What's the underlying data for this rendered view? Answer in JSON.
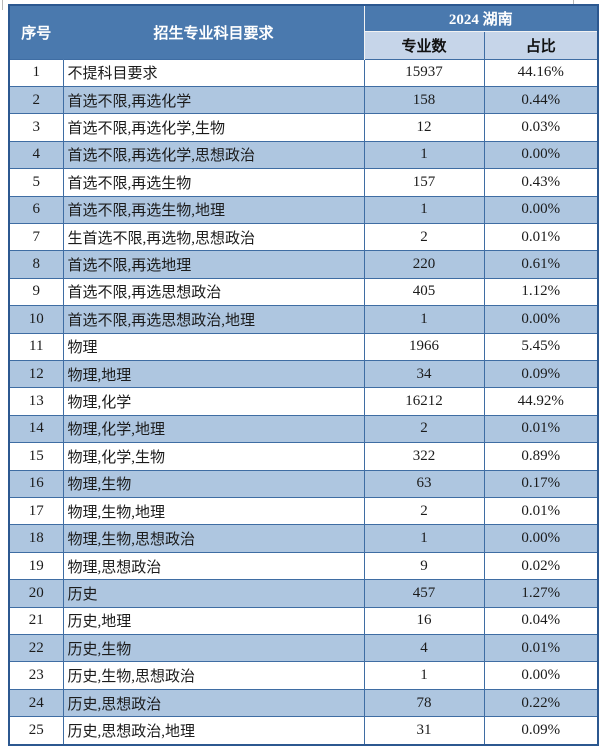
{
  "table": {
    "col_no": "序号",
    "col_req": "招生专业科目要求",
    "group_title": "2024 湖南",
    "col_count": "专业数",
    "col_pct": "占比",
    "rows": [
      {
        "no": "1",
        "req": "不提科目要求",
        "count": "15937",
        "pct": "44.16%"
      },
      {
        "no": "2",
        "req": "首选不限,再选化学",
        "count": "158",
        "pct": "0.44%"
      },
      {
        "no": "3",
        "req": "首选不限,再选化学,生物",
        "count": "12",
        "pct": "0.03%"
      },
      {
        "no": "4",
        "req": "首选不限,再选化学,思想政治",
        "count": "1",
        "pct": "0.00%"
      },
      {
        "no": "5",
        "req": "首选不限,再选生物",
        "count": "157",
        "pct": "0.43%"
      },
      {
        "no": "6",
        "req": "首选不限,再选生物,地理",
        "count": "1",
        "pct": "0.00%"
      },
      {
        "no": "7",
        "req": "生首选不限,再选物,思想政治",
        "count": "2",
        "pct": "0.01%"
      },
      {
        "no": "8",
        "req": "首选不限,再选地理",
        "count": "220",
        "pct": "0.61%"
      },
      {
        "no": "9",
        "req": "首选不限,再选思想政治",
        "count": "405",
        "pct": "1.12%"
      },
      {
        "no": "10",
        "req": "首选不限,再选思想政治,地理",
        "count": "1",
        "pct": "0.00%"
      },
      {
        "no": "11",
        "req": "物理",
        "count": "1966",
        "pct": "5.45%"
      },
      {
        "no": "12",
        "req": "物理,地理",
        "count": "34",
        "pct": "0.09%"
      },
      {
        "no": "13",
        "req": "物理,化学",
        "count": "16212",
        "pct": "44.92%"
      },
      {
        "no": "14",
        "req": "物理,化学,地理",
        "count": "2",
        "pct": "0.01%"
      },
      {
        "no": "15",
        "req": "物理,化学,生物",
        "count": "322",
        "pct": "0.89%"
      },
      {
        "no": "16",
        "req": "物理,生物",
        "count": "63",
        "pct": "0.17%"
      },
      {
        "no": "17",
        "req": "物理,生物,地理",
        "count": "2",
        "pct": "0.01%"
      },
      {
        "no": "18",
        "req": "物理,生物,思想政治",
        "count": "1",
        "pct": "0.00%"
      },
      {
        "no": "19",
        "req": "物理,思想政治",
        "count": "9",
        "pct": "0.02%"
      },
      {
        "no": "20",
        "req": "历史",
        "count": "457",
        "pct": "1.27%"
      },
      {
        "no": "21",
        "req": "历史,地理",
        "count": "16",
        "pct": "0.04%"
      },
      {
        "no": "22",
        "req": "历史,生物",
        "count": "4",
        "pct": "0.01%"
      },
      {
        "no": "23",
        "req": "历史,生物,思想政治",
        "count": "1",
        "pct": "0.00%"
      },
      {
        "no": "24",
        "req": "历史,思想政治",
        "count": "78",
        "pct": "0.22%"
      },
      {
        "no": "25",
        "req": "历史,思想政治,地理",
        "count": "31",
        "pct": "0.09%"
      }
    ]
  },
  "colors": {
    "header_fill": "#4a79ae",
    "subheader_fill": "#c6d5e9",
    "stripe_fill": "#aec6e0",
    "inner_border": "#3f6da3",
    "outer_border": "#2c5890"
  }
}
